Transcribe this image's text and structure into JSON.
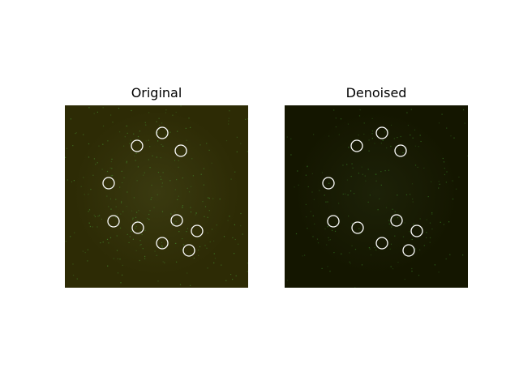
{
  "panels": [
    {
      "title": "Original",
      "colors": {
        "background": "#2d2b05",
        "center_glow": "#3a3a10",
        "speckle": "#3f7a26"
      }
    },
    {
      "title": "Denoised",
      "colors": {
        "background": "#141600",
        "center_glow": "#1d2208",
        "speckle": "#2f6a1c"
      }
    }
  ],
  "marker_color": "#ffffff",
  "marker_count_per_panel": 10
}
